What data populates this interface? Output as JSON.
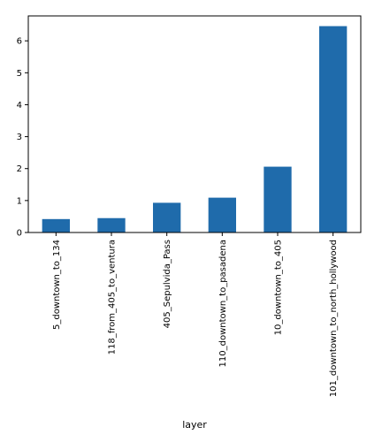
{
  "chart_data": {
    "type": "bar",
    "title": "",
    "xlabel": "layer",
    "ylabel": "",
    "categories": [
      "5_downtown_to_134",
      "118_from_405_to_ventura",
      "405_Sepulvida_Pass",
      "110_downtown_to_pasadena",
      "10_downtown_to_405",
      "101_downtown_to_north_hollywood"
    ],
    "values": [
      0.42,
      0.45,
      0.93,
      1.09,
      2.06,
      6.46
    ],
    "ylim": [
      0,
      6.78
    ],
    "yticks": [
      0,
      1,
      2,
      3,
      4,
      5,
      6
    ],
    "grid": false,
    "legend": "none",
    "bar_color": "#1f6bab"
  }
}
